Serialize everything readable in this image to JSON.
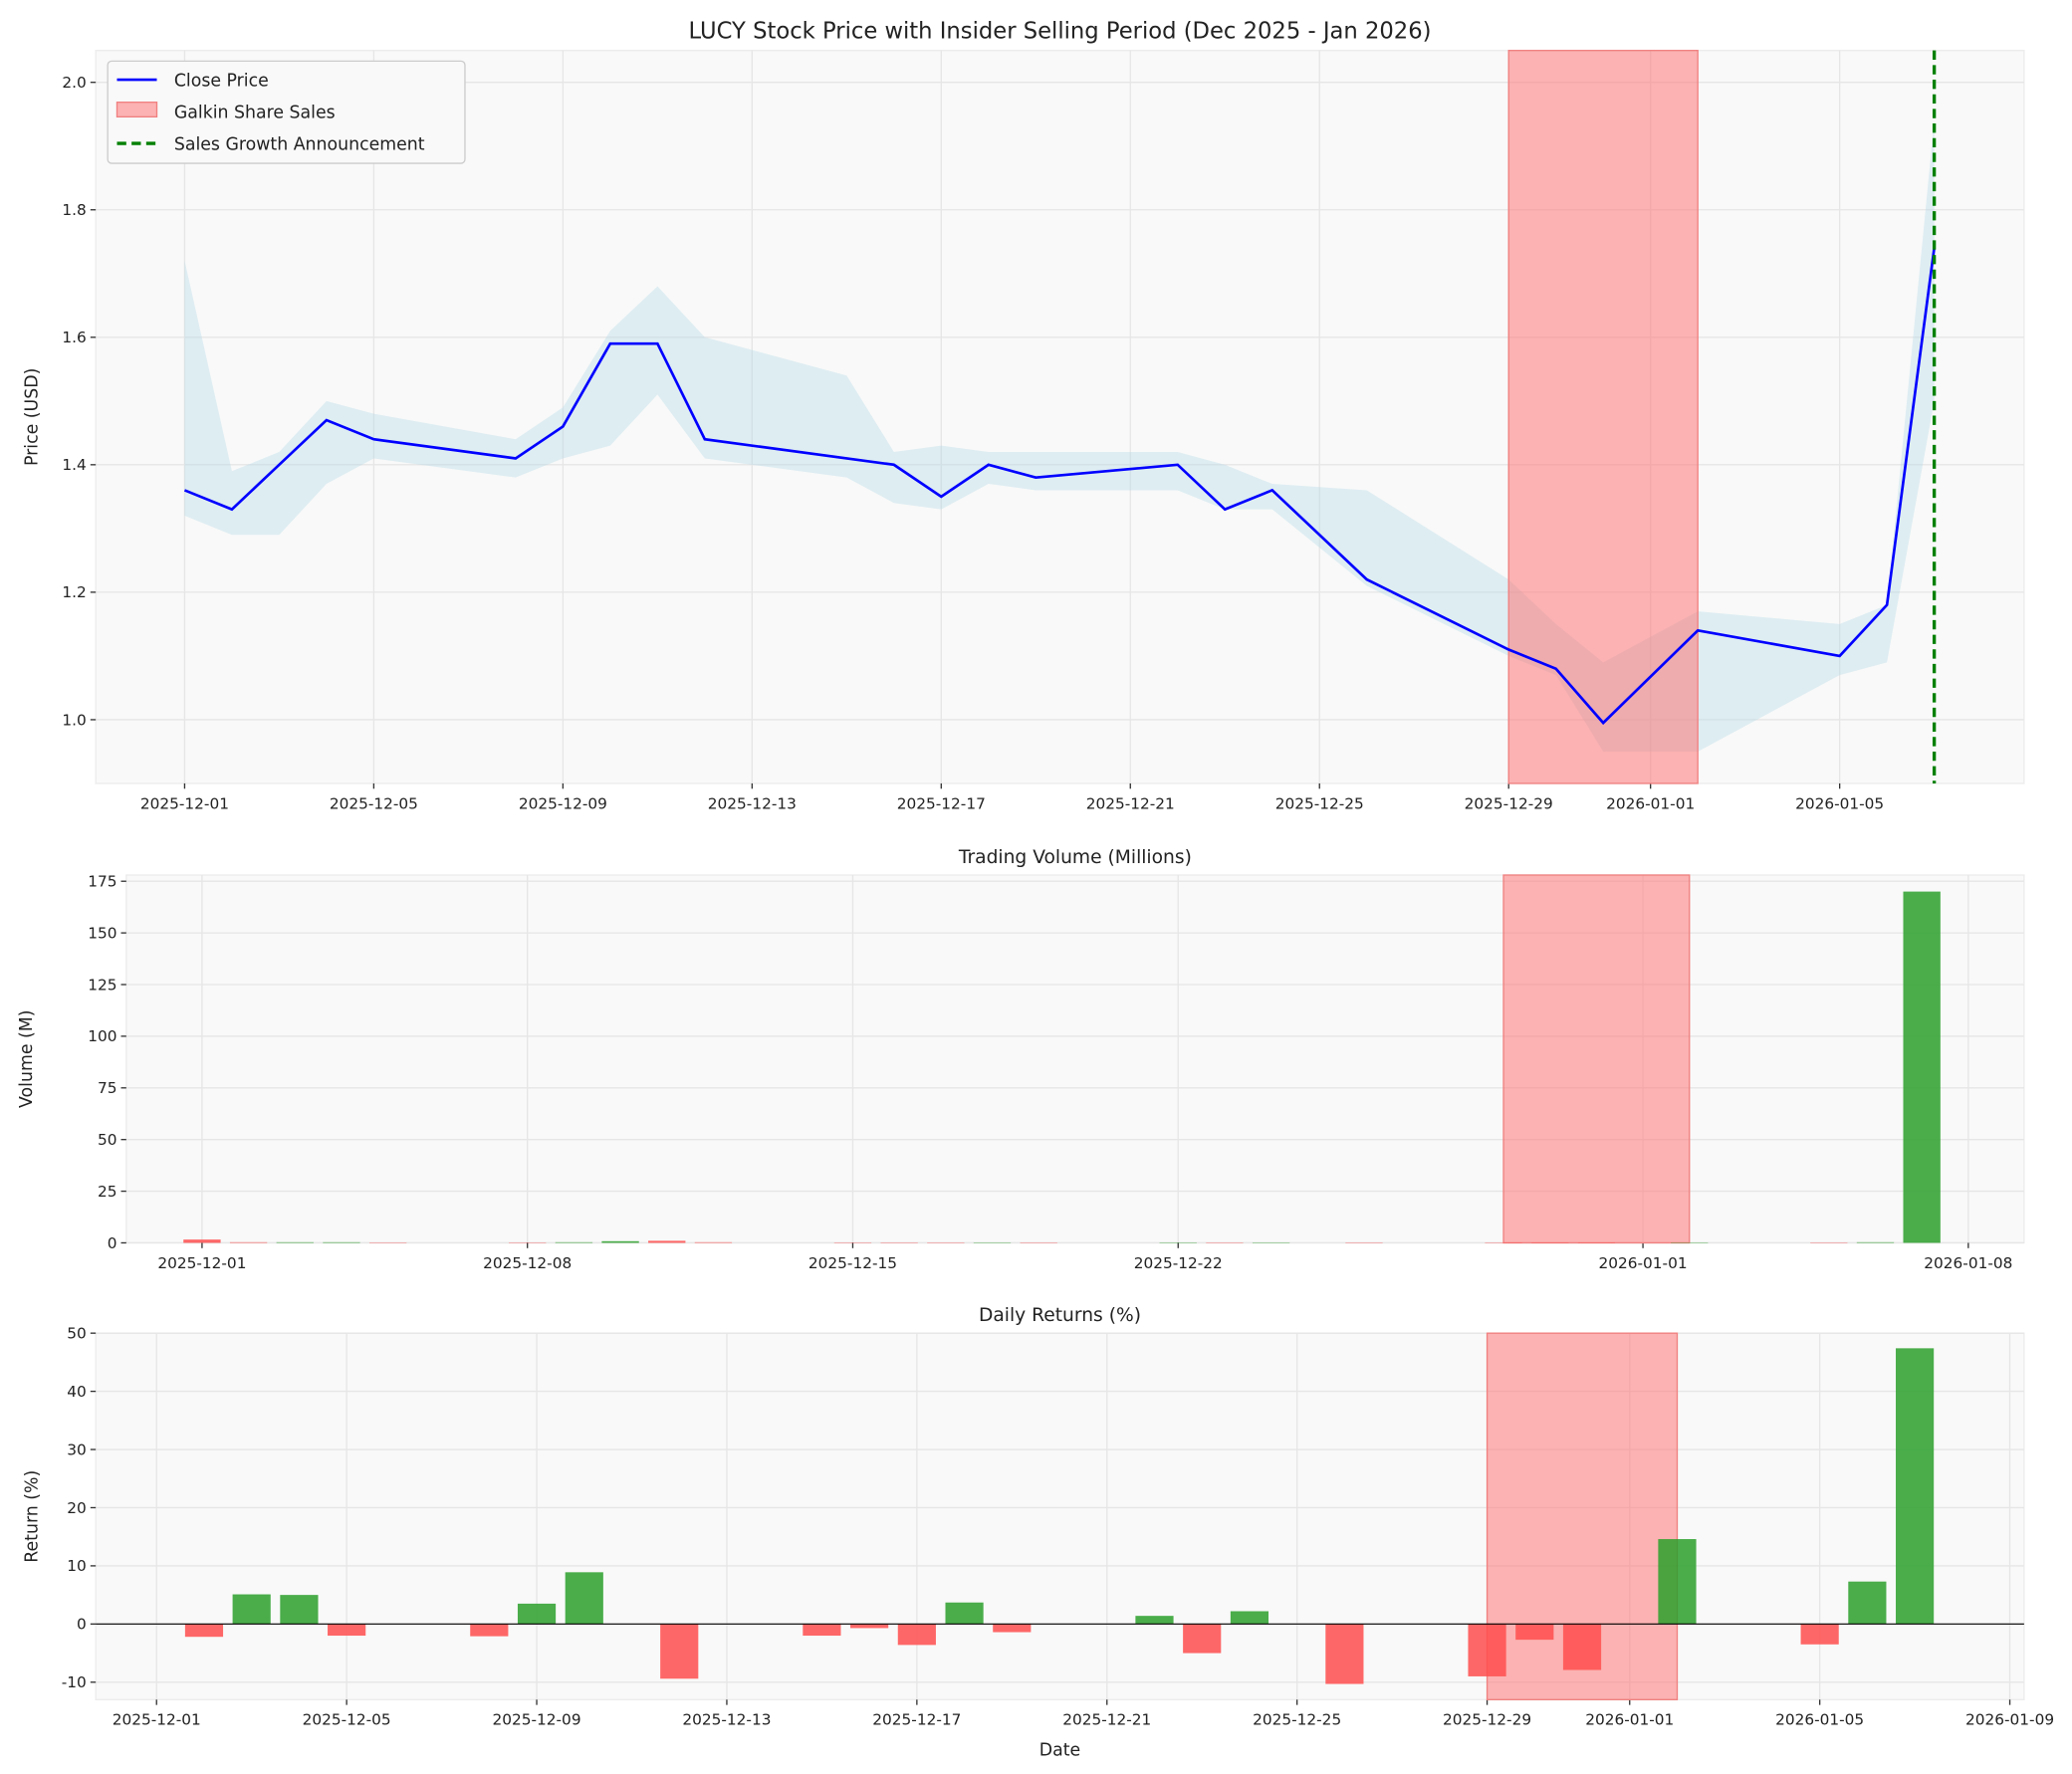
{
  "chart_data": [
    {
      "type": "line",
      "title": "LUCY Stock Price with Insider Selling Period (Dec 2025 - Jan 2026)",
      "xlabel": "",
      "ylabel": "Price (USD)",
      "xlim": [
        "2025-11-29",
        "2026-01-09"
      ],
      "ylim": [
        0.9,
        2.05
      ],
      "yticks": [
        1.0,
        1.2,
        1.4,
        1.6,
        1.8,
        2.0
      ],
      "ytick_labels": [
        "1.0",
        "1.2",
        "1.4",
        "1.6",
        "1.8",
        "2.0"
      ],
      "xticks": [
        "2025-12-01",
        "2025-12-05",
        "2025-12-09",
        "2025-12-13",
        "2025-12-17",
        "2025-12-21",
        "2025-12-25",
        "2025-12-29",
        "2026-01-01",
        "2026-01-05"
      ],
      "grid": true,
      "legend_position": "top-left",
      "legend": [
        "Close Price",
        "Galkin Share Sales",
        "Sales Growth Announcement"
      ],
      "dates": [
        "2025-12-01",
        "2025-12-02",
        "2025-12-03",
        "2025-12-04",
        "2025-12-05",
        "2025-12-08",
        "2025-12-09",
        "2025-12-10",
        "2025-12-11",
        "2025-12-12",
        "2025-12-15",
        "2025-12-16",
        "2025-12-17",
        "2025-12-18",
        "2025-12-19",
        "2025-12-22",
        "2025-12-23",
        "2025-12-24",
        "2025-12-26",
        "2025-12-29",
        "2025-12-30",
        "2025-12-31",
        "2026-01-02",
        "2026-01-05",
        "2026-01-06",
        "2026-01-07"
      ],
      "close": [
        1.36,
        1.33,
        1.4,
        1.47,
        1.44,
        1.41,
        1.46,
        1.59,
        1.59,
        1.44,
        1.41,
        1.4,
        1.35,
        1.4,
        1.38,
        1.4,
        1.33,
        1.36,
        1.22,
        1.11,
        1.08,
        0.995,
        1.14,
        1.1,
        1.18,
        1.74
      ],
      "high": [
        1.72,
        1.39,
        1.42,
        1.5,
        1.48,
        1.44,
        1.49,
        1.61,
        1.68,
        1.6,
        1.54,
        1.42,
        1.43,
        1.42,
        1.42,
        1.42,
        1.4,
        1.37,
        1.36,
        1.22,
        1.15,
        1.09,
        1.17,
        1.15,
        1.18,
        1.94
      ],
      "low": [
        1.32,
        1.29,
        1.29,
        1.37,
        1.41,
        1.38,
        1.41,
        1.43,
        1.51,
        1.41,
        1.38,
        1.34,
        1.33,
        1.37,
        1.36,
        1.36,
        1.33,
        1.33,
        1.21,
        1.1,
        1.07,
        0.95,
        0.95,
        1.07,
        1.09,
        1.5
      ],
      "shaded_period": [
        "2025-12-29",
        "2026-01-02"
      ],
      "announcement_date": "2026-01-07",
      "colors": {
        "line": "#0000ff",
        "band": "#add8e6",
        "shade": "#ff6b6b",
        "announcement": "#008000"
      }
    },
    {
      "type": "bar",
      "title": "Trading Volume (Millions)",
      "xlabel": "",
      "ylabel": "Volume (M)",
      "xlim": [
        "2025-11-29",
        "2026-01-09"
      ],
      "ylim": [
        0,
        178
      ],
      "yticks": [
        0,
        25,
        50,
        75,
        100,
        125,
        150,
        175
      ],
      "xticks": [
        "2025-12-01",
        "2025-12-08",
        "2025-12-15",
        "2025-12-22",
        "2026-01-01",
        "2026-01-08"
      ],
      "grid": true,
      "dates": [
        "2025-12-01",
        "2025-12-02",
        "2025-12-03",
        "2025-12-04",
        "2025-12-05",
        "2025-12-08",
        "2025-12-09",
        "2025-12-10",
        "2025-12-11",
        "2025-12-12",
        "2025-12-15",
        "2025-12-16",
        "2025-12-17",
        "2025-12-18",
        "2025-12-19",
        "2025-12-22",
        "2025-12-23",
        "2025-12-24",
        "2025-12-26",
        "2025-12-29",
        "2025-12-30",
        "2025-12-31",
        "2026-01-02",
        "2026-01-05",
        "2026-01-06",
        "2026-01-07"
      ],
      "values": [
        1.6,
        0.3,
        0.3,
        0.3,
        0.2,
        0.2,
        0.3,
        0.8,
        1.0,
        0.3,
        0.2,
        0.2,
        0.2,
        0.2,
        0.2,
        0.2,
        0.2,
        0.2,
        0.2,
        0.2,
        0.2,
        0.2,
        0.2,
        0.2,
        0.3,
        170
      ],
      "shaded_period": [
        "2025-12-29",
        "2026-01-02"
      ],
      "colors": {
        "up": "#2ca02c",
        "down": "#ff4d4d",
        "shade": "#ff6b6b"
      }
    },
    {
      "type": "bar",
      "title": "Daily Returns (%)",
      "xlabel": "Date",
      "ylabel": "Return (%)",
      "xlim": [
        "2025-11-29",
        "2026-01-09"
      ],
      "ylim": [
        -13,
        50
      ],
      "yticks": [
        -10,
        0,
        10,
        20,
        30,
        40,
        50
      ],
      "xticks": [
        "2025-12-01",
        "2025-12-05",
        "2025-12-09",
        "2025-12-13",
        "2025-12-17",
        "2025-12-21",
        "2025-12-25",
        "2025-12-29",
        "2026-01-01",
        "2026-01-05",
        "2026-01-09"
      ],
      "grid": true,
      "dates": [
        "2025-12-02",
        "2025-12-03",
        "2025-12-04",
        "2025-12-05",
        "2025-12-08",
        "2025-12-09",
        "2025-12-10",
        "2025-12-12",
        "2025-12-15",
        "2025-12-16",
        "2025-12-17",
        "2025-12-18",
        "2025-12-19",
        "2025-12-22",
        "2025-12-23",
        "2025-12-24",
        "2025-12-26",
        "2025-12-29",
        "2025-12-30",
        "2025-12-31",
        "2026-01-02",
        "2026-01-05",
        "2026-01-06",
        "2026-01-07"
      ],
      "values": [
        -2.2,
        5.1,
        5.0,
        -2.0,
        -2.1,
        3.5,
        8.9,
        -9.4,
        -2.0,
        -0.7,
        -3.6,
        3.7,
        -1.4,
        1.4,
        -5.0,
        2.2,
        -10.3,
        -9.0,
        -2.7,
        -7.9,
        14.6,
        -3.5,
        7.3,
        47.4
      ],
      "shaded_period": [
        "2025-12-29",
        "2026-01-02"
      ],
      "colors": {
        "up": "#2ca02c",
        "down": "#ff4d4d",
        "shade": "#ff6b6b"
      }
    }
  ]
}
